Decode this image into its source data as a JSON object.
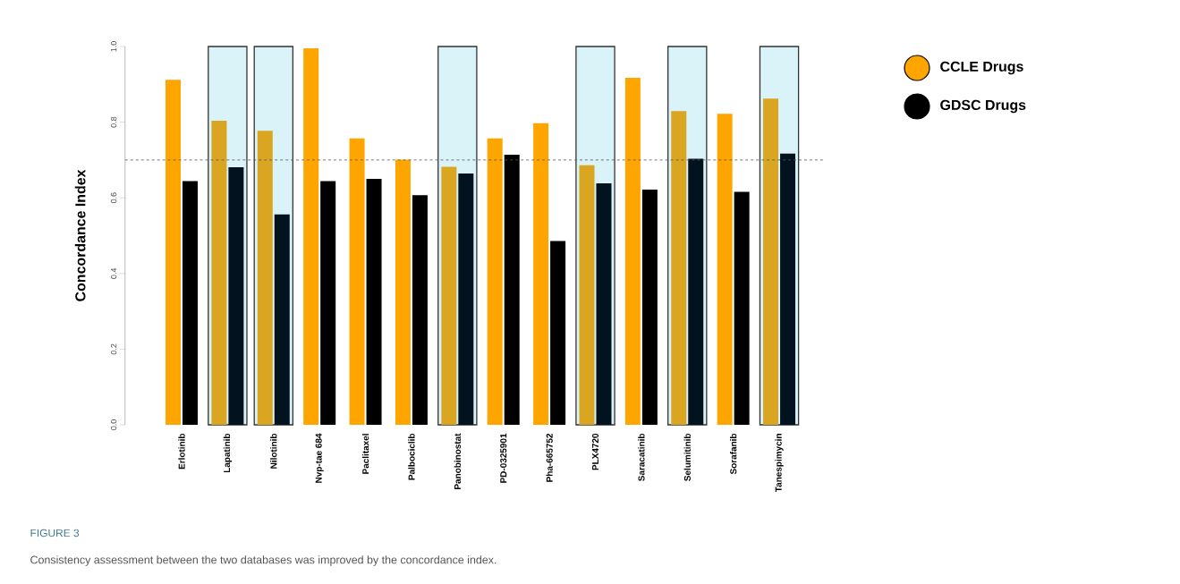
{
  "chart_data": {
    "type": "bar",
    "ylabel": "Concordance Index",
    "categories": [
      "Erlotinib",
      "Lapatinib",
      "Nilotinib",
      "Nvp-tae 684",
      "Paclitaxel",
      "Palbociclib",
      "Panobinostat",
      "PD-0325901",
      "Pha-665752",
      "PLX4720",
      "Saracatinib",
      "Selumitinib",
      "Sorafanib",
      "Tanespimycin"
    ],
    "series": [
      {
        "name": "CCLE Drugs",
        "color": "#ffa500",
        "colors": [
          "#ffa500",
          "#daa520",
          "#daa520",
          "#ffa500",
          "#ffa500",
          "#ffa500",
          "#daa520",
          "#ffa500",
          "#ffa500",
          "#daa520",
          "#ffa500",
          "#daa520",
          "#ffa500",
          "#daa520"
        ],
        "values": [
          0.912,
          0.804,
          0.777,
          0.995,
          0.757,
          0.701,
          0.682,
          0.757,
          0.797,
          0.686,
          0.917,
          0.829,
          0.822,
          0.862
        ]
      },
      {
        "name": "GDSC Drugs",
        "color": "#000000",
        "colors": [
          "#000000",
          "#03121f",
          "#03121f",
          "#000000",
          "#000000",
          "#000000",
          "#03121f",
          "#000000",
          "#000000",
          "#03121f",
          "#000000",
          "#03121f",
          "#000000",
          "#03121f"
        ],
        "values": [
          0.644,
          0.681,
          0.556,
          0.644,
          0.65,
          0.607,
          0.664,
          0.714,
          0.486,
          0.638,
          0.622,
          0.703,
          0.616,
          0.717
        ]
      }
    ],
    "ylim": [
      0,
      1.0
    ],
    "yticks": [
      {
        "value": 0,
        "label": "0.0"
      },
      0.2,
      0.4,
      0.6,
      0.8,
      {
        "value": 1.0,
        "label": "1.0"
      }
    ],
    "ref_lines": [
      {
        "axis": "y",
        "value": 0.7,
        "color": "#555555",
        "line_style": "dashed"
      }
    ],
    "bands": [
      {
        "axis": "x",
        "from": "Lapatinib",
        "to": "Lapatinib",
        "color": "#daf3f8"
      },
      {
        "axis": "x",
        "from": "Nilotinib",
        "to": "Nilotinib",
        "color": "#daf3f8"
      },
      {
        "axis": "x",
        "from": "Panobinostat",
        "to": "Panobinostat",
        "color": "#daf3f8"
      },
      {
        "axis": "x",
        "from": "PLX4720",
        "to": "PLX4720",
        "color": "#daf3f8"
      },
      {
        "axis": "x",
        "from": "Selumitinib",
        "to": "Selumitinib",
        "color": "#daf3f8"
      },
      {
        "axis": "x",
        "from": "Tanespimycin",
        "to": "Tanespimycin",
        "color": "#daf3f8"
      }
    ],
    "legend": "top right",
    "annotations": [
      "FIGURE 3",
      "Consistency assessment between the two databases was improved by the concordance index."
    ]
  }
}
